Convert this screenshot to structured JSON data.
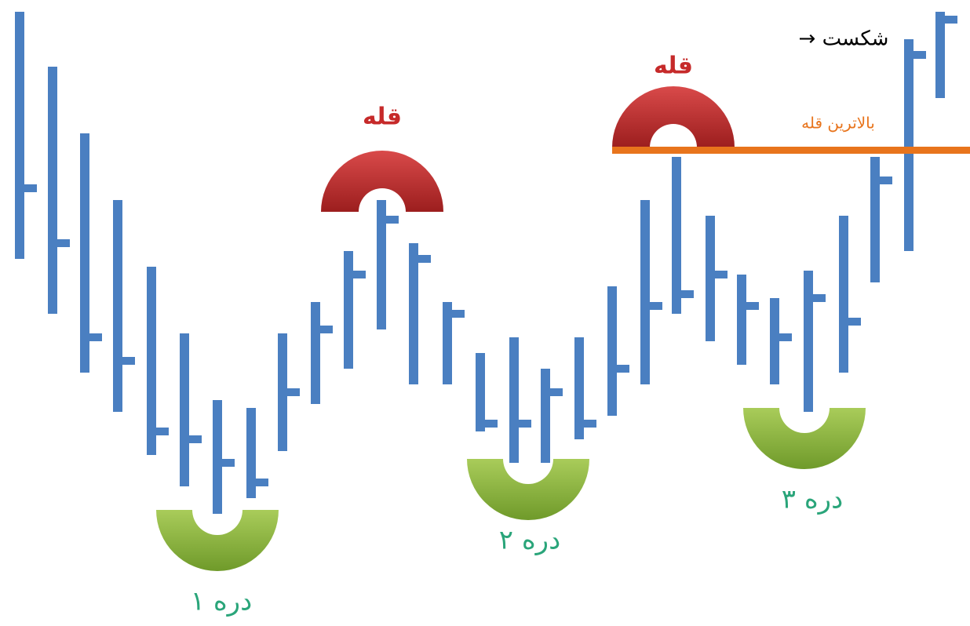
{
  "labels": {
    "peak_1": "قله",
    "peak_2": "قله",
    "highest_peak": "بالاترین قله",
    "breakout": "→ شکست",
    "valley_1": "دره ۱",
    "valley_2": "دره ۲",
    "valley_3": "دره ۳"
  }
}
